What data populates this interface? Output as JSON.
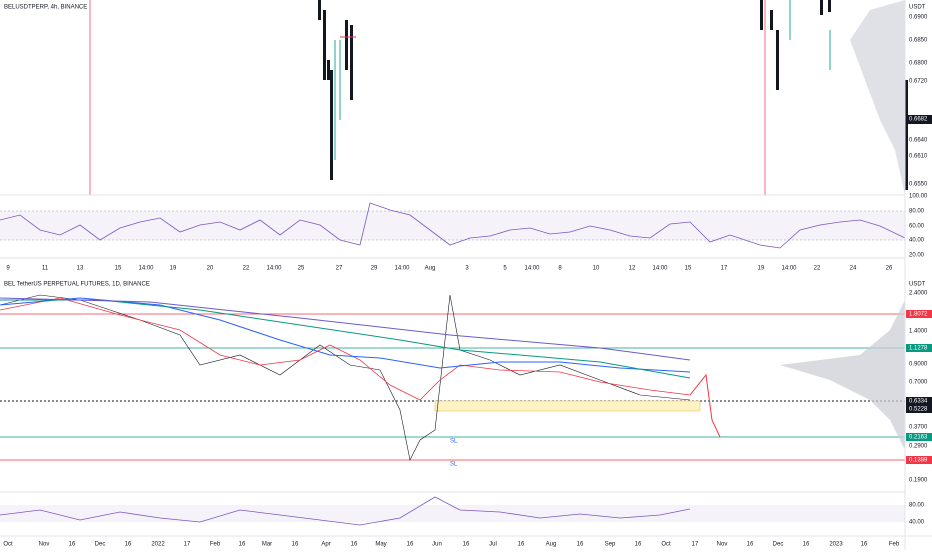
{
  "top": {
    "title": "BELUSDTPERP, 4h, BINANCE",
    "currency": "USDT",
    "price_ticks": [
      "0.6900",
      "0.6850",
      "0.6800",
      "0.6720",
      "0.6640",
      "0.6610",
      "0.6550"
    ],
    "price_tag": "0.6682",
    "rsi_ticks": [
      "100.00",
      "80.00",
      "60.00",
      "40.00",
      "20.00"
    ],
    "dates": [
      "9",
      "11",
      "13",
      "15",
      "14:00",
      "19",
      "20",
      "22",
      "14:00",
      "25",
      "27",
      "29",
      "14:00",
      "Aug",
      "3",
      "5",
      "14:00",
      "8",
      "10",
      "12",
      "14:00",
      "15",
      "17",
      "19",
      "14:00",
      "22",
      "24",
      "26"
    ]
  },
  "bottom": {
    "title": "BEL TetherUS PERPETUAL FUTURES, 1D, BINANCE",
    "currency": "USDT",
    "price_ticks": [
      "2.4000",
      "1.4000",
      "0.9000",
      "0.7000",
      "0.3700",
      "0.2900",
      "0.1900"
    ],
    "tags": [
      "1.8072",
      "1.1278",
      "0.6334",
      "0.5228",
      "0.2163",
      "0.1389"
    ],
    "sl": [
      "SL",
      "SL"
    ],
    "rsi_ticks": [
      "80.00",
      "40.00"
    ],
    "dates": [
      "Oct",
      "Nov",
      "16",
      "Dec",
      "16",
      "2022",
      "17",
      "Feb",
      "16",
      "Mar",
      "16",
      "Apr",
      "16",
      "May",
      "16",
      "Jun",
      "16",
      "Jul",
      "16",
      "Aug",
      "16",
      "Sep",
      "16",
      "Oct",
      "17",
      "Nov",
      "16",
      "Dec",
      "16",
      "2023",
      "16",
      "Feb"
    ]
  }
}
